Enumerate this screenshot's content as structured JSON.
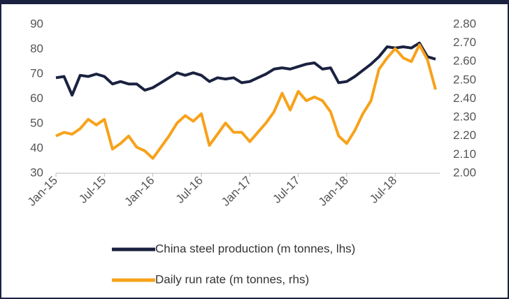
{
  "chart_data": {
    "type": "line",
    "categories": [
      "Jan-15",
      null,
      null,
      null,
      null,
      null,
      "Jul-15",
      null,
      null,
      null,
      null,
      null,
      "Jan-16",
      null,
      null,
      null,
      null,
      null,
      "Jul-16",
      null,
      null,
      null,
      null,
      null,
      "Jan-17",
      null,
      null,
      null,
      null,
      null,
      "Jul-17",
      null,
      null,
      null,
      null,
      null,
      "Jan-18",
      null,
      null,
      null,
      null,
      null,
      "Jul-18",
      null,
      null,
      null,
      null,
      null
    ],
    "series": [
      {
        "name": "China steel production (m tonnes, lhs)",
        "color": "#1b2240",
        "values": [
          68.5,
          69,
          61.5,
          69.5,
          69,
          70,
          69,
          66,
          67,
          66,
          66,
          63.5,
          64.5,
          66.5,
          68.5,
          70.5,
          69.5,
          70.5,
          69.5,
          67,
          68.5,
          68,
          68.5,
          66.5,
          67,
          68.5,
          70,
          72,
          72.5,
          72,
          73,
          74,
          74.5,
          72,
          72.5,
          66.5,
          67,
          69,
          71.5,
          74,
          77,
          81,
          80.5,
          81,
          80.5,
          82.5,
          77,
          76
        ]
      },
      {
        "name": "Daily run rate (m tonnes, rhs)",
        "color": "#f7a21b",
        "axis": "y2",
        "values": [
          2.2,
          2.22,
          2.21,
          2.24,
          2.29,
          2.26,
          2.29,
          2.13,
          2.16,
          2.2,
          2.14,
          2.12,
          2.08,
          2.14,
          2.2,
          2.27,
          2.31,
          2.28,
          2.32,
          2.15,
          2.21,
          2.27,
          2.22,
          2.22,
          2.17,
          2.22,
          2.27,
          2.33,
          2.43,
          2.34,
          2.44,
          2.39,
          2.41,
          2.39,
          2.33,
          2.2,
          2.16,
          2.23,
          2.32,
          2.39,
          2.56,
          2.62,
          2.67,
          2.62,
          2.6,
          2.69,
          2.61,
          2.45
        ]
      }
    ],
    "ylim": [
      30,
      90
    ],
    "yticks": [
      30,
      40,
      50,
      60,
      70,
      80,
      90
    ],
    "y2lim": [
      2.0,
      2.8
    ],
    "y2ticks": [
      {
        "value": 2.0,
        "label": "2.00"
      },
      {
        "value": 2.1,
        "label": "2.10"
      },
      {
        "value": 2.2,
        "label": "2.20"
      },
      {
        "value": 2.3,
        "label": "2.30"
      },
      {
        "value": 2.4,
        "label": "2.40"
      },
      {
        "value": 2.5,
        "label": "2.50"
      },
      {
        "value": 2.6,
        "label": "2.60"
      },
      {
        "value": 2.7,
        "label": "2.70"
      },
      {
        "value": 2.8,
        "label": "2.80"
      }
    ],
    "grid": false,
    "legend": "bottom"
  }
}
